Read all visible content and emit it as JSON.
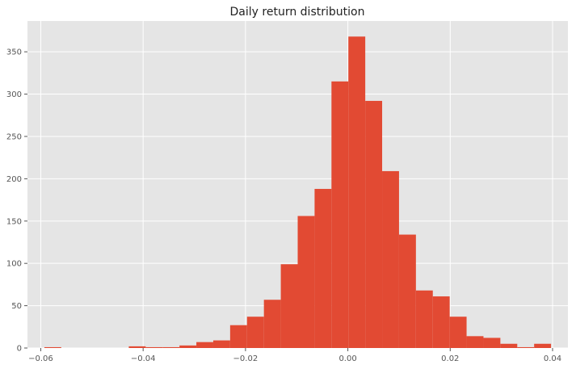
{
  "chart_data": {
    "type": "bar",
    "title": "Daily return distribution",
    "xlabel": "",
    "ylabel": "",
    "bin_edges": [
      -0.0593,
      -0.056,
      -0.0527,
      -0.0494,
      -0.0461,
      -0.0428,
      -0.0395,
      -0.0362,
      -0.0329,
      -0.0296,
      -0.0263,
      -0.023,
      -0.0197,
      -0.0164,
      -0.0131,
      -0.0098,
      -0.0065,
      -0.0032,
      0.0001,
      0.0034,
      0.0067,
      0.01,
      0.0133,
      0.0166,
      0.0199,
      0.0232,
      0.0265,
      0.0298,
      0.0331,
      0.0364,
      0.0397
    ],
    "counts": [
      1,
      0,
      0,
      0,
      0,
      2,
      1,
      1,
      3,
      7,
      9,
      27,
      37,
      57,
      99,
      156,
      188,
      315,
      368,
      292,
      209,
      134,
      68,
      61,
      37,
      14,
      12,
      5,
      1,
      5
    ],
    "xlim": [
      -0.0626,
      0.043
    ],
    "ylim": [
      0,
      386.4
    ],
    "x_ticks": [
      -0.06,
      -0.04,
      -0.02,
      0.0,
      0.02,
      0.04
    ],
    "x_tick_labels": [
      "−0.06",
      "−0.04",
      "−0.02",
      "0.00",
      "0.02",
      "0.04"
    ],
    "y_ticks": [
      0,
      50,
      100,
      150,
      200,
      250,
      300,
      350
    ],
    "y_tick_labels": [
      "0",
      "50",
      "100",
      "150",
      "200",
      "250",
      "300",
      "350"
    ],
    "grid": true,
    "legend": "none",
    "colors": {
      "bar": "#E24A33",
      "plot_background": "#E5E5E5",
      "grid": "#FFFFFF",
      "tick": "#555555"
    }
  }
}
